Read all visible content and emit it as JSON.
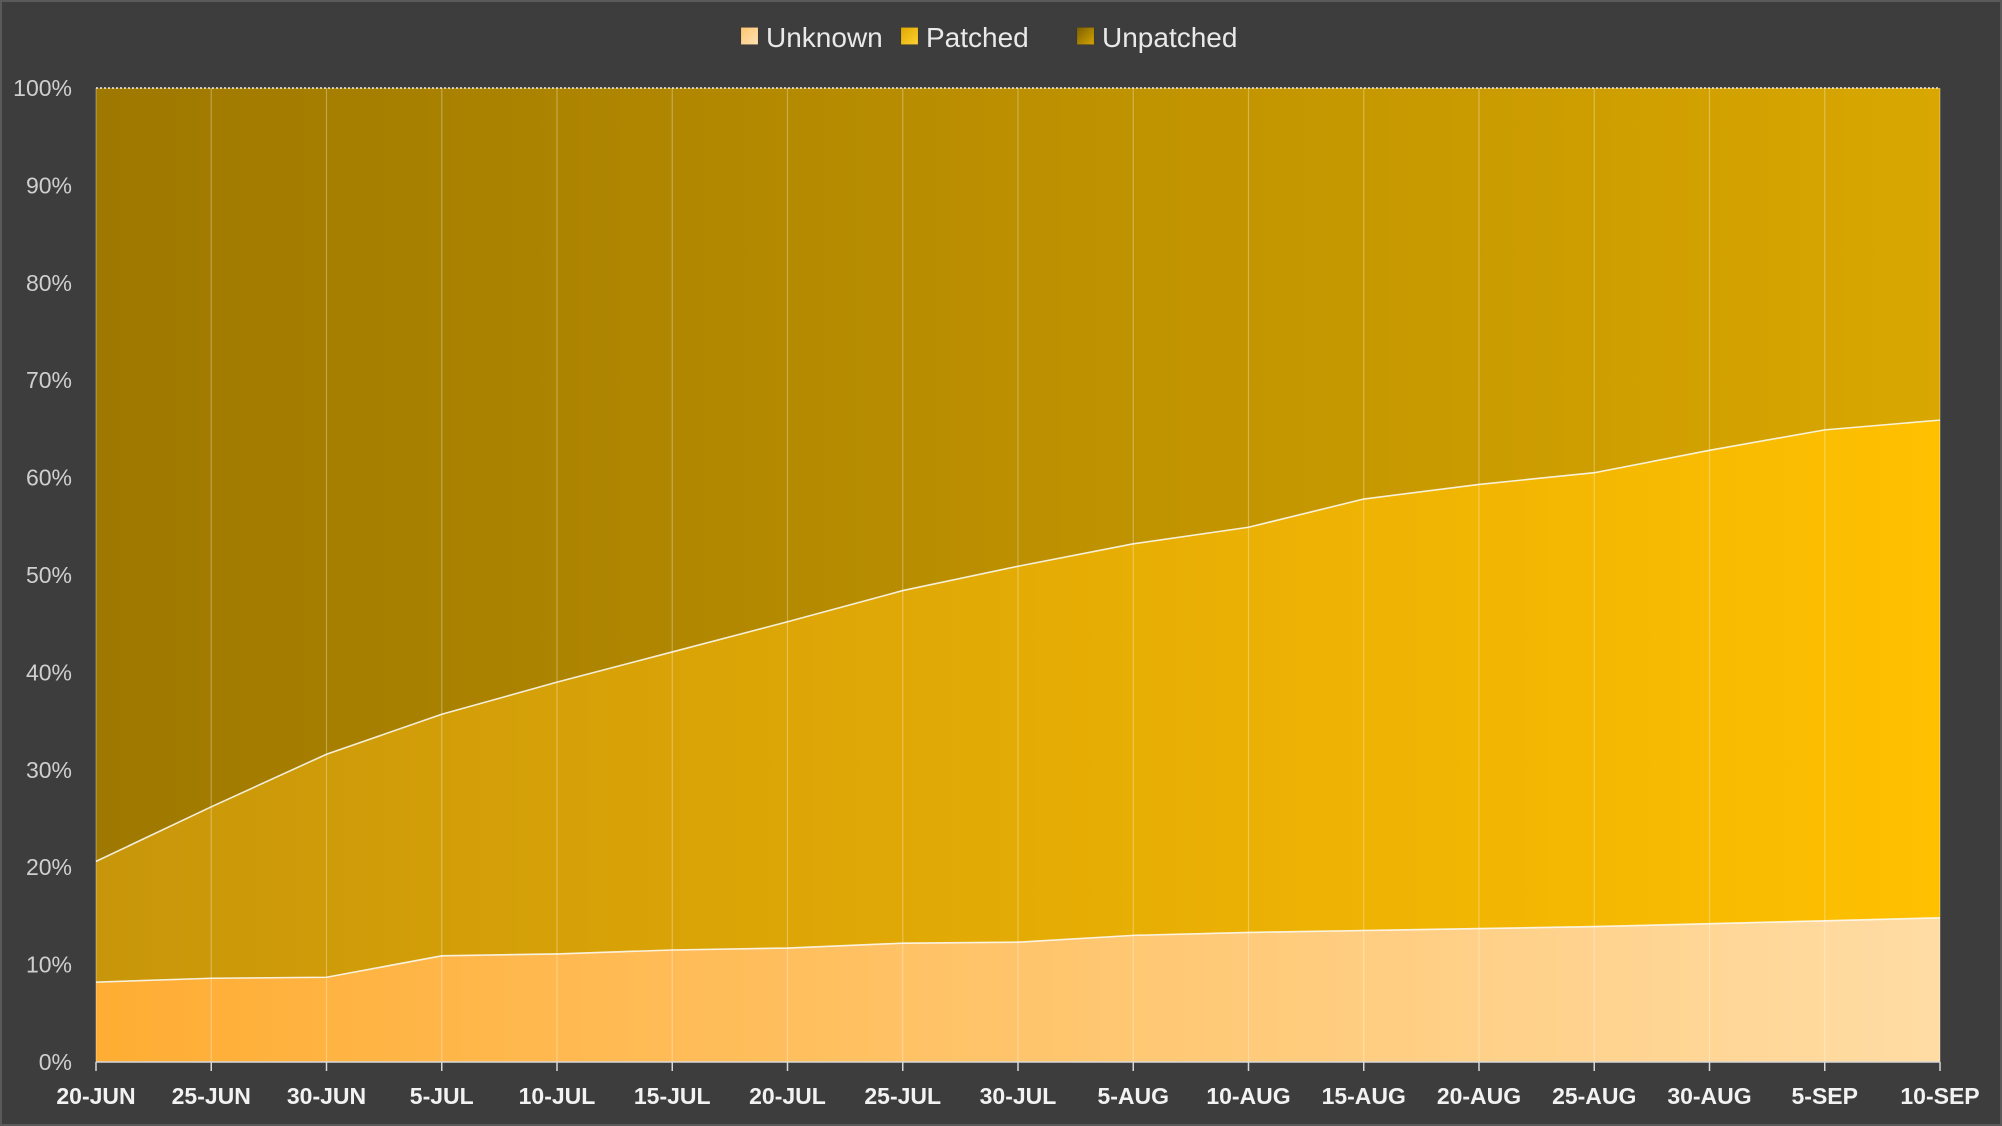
{
  "chart_data": {
    "type": "area",
    "stacked": true,
    "normalized_percent": true,
    "title": "",
    "xlabel": "",
    "ylabel": "",
    "ylim": [
      0,
      100
    ],
    "y_ticks": [
      "0%",
      "10%",
      "20%",
      "30%",
      "40%",
      "50%",
      "60%",
      "70%",
      "80%",
      "90%",
      "100%"
    ],
    "categories": [
      "20-JUN",
      "25-JUN",
      "30-JUN",
      "5-JUL",
      "10-JUL",
      "15-JUL",
      "20-JUL",
      "25-JUL",
      "30-JUL",
      "5-AUG",
      "10-AUG",
      "15-AUG",
      "20-AUG",
      "25-AUG",
      "30-AUG",
      "5-SEP",
      "10-SEP"
    ],
    "legend_position": "top-center",
    "grid": "vertical",
    "series": [
      {
        "name": "Unknown",
        "color": "#ffd9a0",
        "gradient": [
          "#ffad33",
          "#ffdca4"
        ],
        "values": [
          8.2,
          8.6,
          8.7,
          10.9,
          11.1,
          11.5,
          11.7,
          12.2,
          12.3,
          13.0,
          13.3,
          13.5,
          13.7,
          13.9,
          14.2,
          14.5,
          14.8
        ]
      },
      {
        "name": "Patched",
        "color": "#ffbf00",
        "gradient": [
          "#c8960a",
          "#ffc000"
        ],
        "values": [
          12.4,
          17.6,
          22.9,
          24.8,
          27.9,
          30.6,
          33.5,
          36.2,
          38.6,
          40.2,
          41.6,
          44.3,
          45.6,
          46.6,
          48.6,
          50.4,
          51.1
        ]
      },
      {
        "name": "Unpatched",
        "color": "#b08800",
        "gradient": [
          "#9e7800",
          "#d9a700"
        ],
        "values": [
          79.4,
          73.8,
          68.4,
          64.3,
          61.0,
          57.9,
          54.8,
          51.6,
          49.1,
          46.8,
          45.1,
          42.2,
          40.7,
          39.5,
          37.2,
          35.1,
          34.1
        ]
      }
    ]
  },
  "legend_marker_gradients": {
    "Unknown": [
      "#ffc670",
      "#ffe2b4"
    ],
    "Patched": [
      "#e0a800",
      "#ffd133"
    ],
    "Unpatched": [
      "#7c6000",
      "#d4a400"
    ]
  }
}
